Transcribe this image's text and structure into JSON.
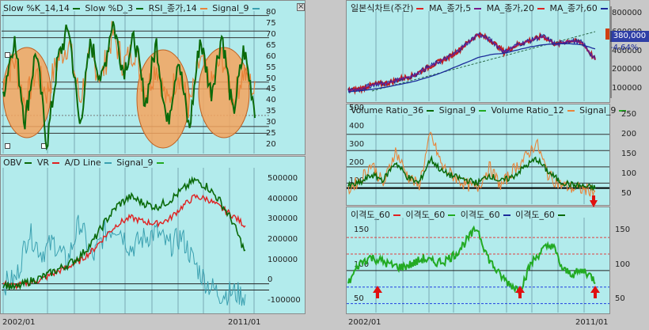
{
  "colors": {
    "panel_bg": "#b2ebec",
    "dark_green": "#0a6a0a",
    "orange": "#e8843a",
    "red": "#e02020",
    "teal": "#3aa0b0",
    "navy": "#1b2b9a",
    "purple": "#7a1a8a",
    "bright_green": "#22aa22",
    "circle_fill": "#f5a45e"
  },
  "close_glyph": "×",
  "panels": {
    "stoch": {
      "legend": [
        "Slow %K_14,14",
        "Slow %D_3",
        "RSI_종가,14",
        "Signal_9"
      ],
      "yticks": [
        "80",
        "75",
        "70",
        "65",
        "60",
        "55",
        "50",
        "45",
        "40",
        "35",
        "30",
        "25",
        "20"
      ]
    },
    "obv": {
      "legend": [
        "OBV",
        "VR",
        "A/D Line",
        "Signal_9"
      ],
      "yticks": [
        "500000",
        "400000",
        "300000",
        "200000",
        "100000",
        "0",
        "-100000"
      ]
    },
    "price": {
      "legend": [
        "일본식차트(주간)",
        "MA_종가,5",
        "MA_종가,20",
        "MA_종가,60"
      ],
      "yticks": [
        "800000",
        "600000",
        "400000",
        "200000",
        "100000"
      ],
      "price_tag": "380,000",
      "pct_tag": "-4.64%"
    },
    "volume": {
      "legend": [
        "Volume Ratio_36",
        "Signal_9",
        "Volume Ratio_12",
        "Signal_9"
      ],
      "yticks_left": [
        "500",
        "400",
        "300",
        "200",
        "100"
      ],
      "yticks_right": [
        "250",
        "200",
        "150",
        "100",
        "50"
      ]
    },
    "disparity": {
      "legend": [
        "이격도_60",
        "이격도_60",
        "이격도_60",
        "이격도_60"
      ],
      "yticks_left": [
        "150",
        "100",
        "50"
      ],
      "yticks_right": [
        "150",
        "100",
        "50"
      ]
    }
  },
  "xaxis": {
    "left_start": "2002/01",
    "left_end": "2011/01",
    "right_start": "2002/01",
    "right_end": "2011/01"
  },
  "chart_data": [
    {
      "type": "line",
      "title": "",
      "series": [
        {
          "name": "Slow %K_14,14",
          "values": [
            45,
            70,
            32,
            65,
            22,
            60,
            75,
            30,
            68,
            50,
            78,
            55,
            70,
            40,
            68,
            30,
            62,
            28,
            70,
            45,
            72,
            35,
            65,
            38
          ]
        },
        {
          "name": "RSI_종가,14",
          "values": [
            50,
            60,
            40,
            55,
            45,
            60,
            68,
            42,
            62,
            52,
            72,
            58,
            65,
            45,
            58,
            40,
            55,
            38,
            60,
            48,
            62,
            42,
            55,
            45
          ]
        }
      ],
      "ylim": [
        20,
        82
      ]
    },
    {
      "type": "line",
      "title": "",
      "series": [
        {
          "name": "OBV",
          "values": [
            0,
            -20000,
            10000,
            30000,
            60000,
            90000,
            130000,
            200000,
            300000,
            380000,
            420000,
            390000,
            370000,
            400000,
            450000,
            500000,
            470000,
            400000,
            300000,
            150000
          ]
        },
        {
          "name": "VR",
          "values": [
            0,
            -10000,
            5000,
            20000,
            50000,
            80000,
            110000,
            160000,
            230000,
            290000,
            320000,
            300000,
            290000,
            310000,
            370000,
            420000,
            410000,
            370000,
            330000,
            280000
          ]
        },
        {
          "name": "A/D Line",
          "values": [
            0,
            20000,
            250000,
            150000,
            200000,
            100000,
            300000,
            120000,
            250000,
            280000,
            170000,
            220000,
            250000,
            180000,
            230000,
            100000,
            0,
            -50000,
            -40000,
            -60000
          ]
        }
      ],
      "ylim": [
        -120000,
        560000
      ]
    },
    {
      "type": "line",
      "title": "",
      "series": [
        {
          "name": "MA_종가,5",
          "values": [
            90000,
            110000,
            150000,
            160000,
            200000,
            230000,
            300000,
            360000,
            420000,
            520000,
            620000,
            560000,
            450000,
            520000,
            560000,
            600000,
            520000,
            560000,
            540000,
            380000
          ]
        },
        {
          "name": "MA_종가,60",
          "values": [
            80000,
            90000,
            105000,
            125000,
            150000,
            175000,
            210000,
            250000,
            300000,
            350000,
            400000,
            430000,
            440000,
            470000,
            500000,
            520000,
            530000,
            530000,
            520000,
            480000
          ]
        }
      ],
      "ylim": [
        50000,
        820000
      ]
    },
    {
      "type": "line",
      "title": "",
      "series": [
        {
          "name": "Volume Ratio_36",
          "values": [
            80,
            100,
            150,
            120,
            230,
            140,
            100,
            250,
            170,
            140,
            120,
            100,
            150,
            110,
            140,
            200,
            250,
            170,
            110,
            90,
            80,
            70
          ]
        },
        {
          "name": "Volume Ratio_12",
          "values": [
            60,
            120,
            220,
            90,
            300,
            150,
            80,
            400,
            200,
            140,
            90,
            70,
            200,
            80,
            180,
            250,
            350,
            150,
            90,
            70,
            60,
            55
          ]
        }
      ],
      "ylim": [
        0,
        520
      ]
    },
    {
      "type": "line",
      "title": "",
      "series": [
        {
          "name": "이격도_60",
          "values": [
            80,
            110,
            120,
            115,
            108,
            105,
            110,
            118,
            112,
            115,
            125,
            145,
            165,
            120,
            95,
            80,
            70,
            110,
            130,
            140,
            100,
            95,
            100,
            85
          ]
        }
      ],
      "ylim": [
        40,
        180
      ]
    }
  ]
}
